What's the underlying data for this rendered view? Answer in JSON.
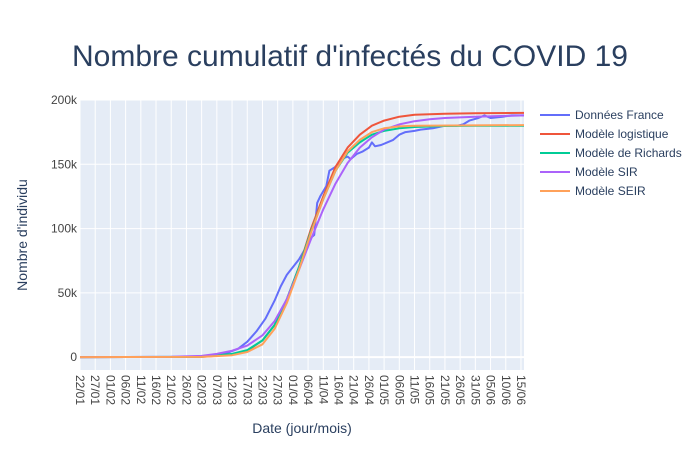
{
  "chart_data": {
    "type": "line",
    "title": "Nombre cumulatif d'infectés du COVID 19",
    "xlabel": "Date (jour/mois)",
    "ylabel": "Nombre d'individu",
    "x_tick_labels": [
      "22/01",
      "27/01",
      "01/02",
      "06/02",
      "11/02",
      "16/02",
      "21/02",
      "26/02",
      "02/03",
      "07/03",
      "12/03",
      "17/03",
      "22/03",
      "27/03",
      "01/04",
      "06/04",
      "11/04",
      "16/04",
      "21/04",
      "26/04",
      "01/05",
      "06/05",
      "11/05",
      "16/05",
      "21/05",
      "26/05",
      "31/05",
      "05/06",
      "10/06",
      "15/06"
    ],
    "y_tick_labels": [
      "0",
      "50k",
      "100k",
      "150k",
      "200k"
    ],
    "y_ticks": [
      0,
      50000,
      100000,
      150000,
      200000
    ],
    "ylim": [
      -10000,
      200000
    ],
    "x_unit": "days since 22/01",
    "xlim": [
      0,
      146
    ],
    "grid": true,
    "legend_position": "right",
    "background_color": "#e5ecf6",
    "series": [
      {
        "name": "Données France",
        "color": "#636efa",
        "points": [
          [
            0,
            0
          ],
          [
            30,
            100
          ],
          [
            38,
            200
          ],
          [
            44,
            1000
          ],
          [
            48,
            3000
          ],
          [
            52,
            6500
          ],
          [
            55,
            12000
          ],
          [
            58,
            20000
          ],
          [
            61,
            30000
          ],
          [
            64,
            44000
          ],
          [
            66,
            55000
          ],
          [
            68,
            64000
          ],
          [
            69,
            67000
          ],
          [
            70,
            70000
          ],
          [
            72,
            76000
          ],
          [
            74,
            84000
          ],
          [
            76,
            93000
          ],
          [
            77,
            95000
          ],
          [
            78,
            120000
          ],
          [
            79,
            125000
          ],
          [
            81,
            133000
          ],
          [
            82,
            145000
          ],
          [
            84,
            148000
          ],
          [
            86,
            154000
          ],
          [
            88,
            156000
          ],
          [
            89,
            154000
          ],
          [
            91,
            158000
          ],
          [
            93,
            160000
          ],
          [
            95,
            163000
          ],
          [
            96,
            167000
          ],
          [
            97,
            164000
          ],
          [
            99,
            165000
          ],
          [
            101,
            167000
          ],
          [
            103,
            169000
          ],
          [
            105,
            173000
          ],
          [
            107,
            175000
          ],
          [
            110,
            176000
          ],
          [
            112,
            177000
          ],
          [
            116,
            178000
          ],
          [
            118,
            179000
          ],
          [
            120,
            180000
          ],
          [
            124,
            180000
          ],
          [
            126,
            181000
          ],
          [
            128,
            184000
          ],
          [
            131,
            186000
          ],
          [
            133,
            188000
          ],
          [
            135,
            186000
          ],
          [
            139,
            187000
          ],
          [
            142,
            188000
          ],
          [
            146,
            188000
          ]
        ]
      },
      {
        "name": "Modèle logistique",
        "color": "#ef553b",
        "points": [
          [
            0,
            0
          ],
          [
            40,
            200
          ],
          [
            50,
            2000
          ],
          [
            55,
            5000
          ],
          [
            60,
            13000
          ],
          [
            64,
            25000
          ],
          [
            68,
            45000
          ],
          [
            72,
            70000
          ],
          [
            76,
            100000
          ],
          [
            80,
            125000
          ],
          [
            84,
            148000
          ],
          [
            88,
            163000
          ],
          [
            92,
            173000
          ],
          [
            96,
            180000
          ],
          [
            100,
            184000
          ],
          [
            105,
            187000
          ],
          [
            110,
            188500
          ],
          [
            120,
            189300
          ],
          [
            130,
            189700
          ],
          [
            146,
            190000
          ]
        ]
      },
      {
        "name": "Modèle de Richards",
        "color": "#00cc96",
        "points": [
          [
            0,
            0
          ],
          [
            40,
            300
          ],
          [
            50,
            2500
          ],
          [
            55,
            5500
          ],
          [
            60,
            13000
          ],
          [
            64,
            25000
          ],
          [
            68,
            45000
          ],
          [
            72,
            70000
          ],
          [
            76,
            98000
          ],
          [
            80,
            123000
          ],
          [
            84,
            145000
          ],
          [
            88,
            159000
          ],
          [
            92,
            167000
          ],
          [
            96,
            173000
          ],
          [
            100,
            176000
          ],
          [
            105,
            178000
          ],
          [
            110,
            179000
          ],
          [
            120,
            179800
          ],
          [
            130,
            180000
          ],
          [
            146,
            180000
          ]
        ]
      },
      {
        "name": "Modèle SIR",
        "color": "#ab63fa",
        "points": [
          [
            0,
            0
          ],
          [
            30,
            300
          ],
          [
            40,
            1000
          ],
          [
            45,
            2500
          ],
          [
            50,
            5000
          ],
          [
            55,
            9000
          ],
          [
            60,
            17000
          ],
          [
            64,
            28000
          ],
          [
            68,
            45000
          ],
          [
            72,
            68000
          ],
          [
            76,
            92000
          ],
          [
            80,
            115000
          ],
          [
            84,
            135000
          ],
          [
            88,
            151000
          ],
          [
            92,
            163000
          ],
          [
            96,
            171000
          ],
          [
            100,
            177000
          ],
          [
            105,
            181000
          ],
          [
            110,
            183500
          ],
          [
            115,
            185000
          ],
          [
            120,
            186000
          ],
          [
            130,
            187000
          ],
          [
            146,
            188000
          ]
        ]
      },
      {
        "name": "Modèle SEIR",
        "color": "#ffa15a",
        "points": [
          [
            0,
            0
          ],
          [
            40,
            200
          ],
          [
            50,
            1500
          ],
          [
            55,
            4000
          ],
          [
            60,
            10000
          ],
          [
            64,
            22000
          ],
          [
            68,
            42000
          ],
          [
            72,
            68000
          ],
          [
            76,
            97000
          ],
          [
            80,
            123000
          ],
          [
            84,
            145000
          ],
          [
            88,
            160000
          ],
          [
            92,
            169000
          ],
          [
            96,
            175000
          ],
          [
            100,
            178000
          ],
          [
            105,
            179500
          ],
          [
            110,
            180000
          ],
          [
            146,
            180500
          ]
        ]
      }
    ]
  }
}
